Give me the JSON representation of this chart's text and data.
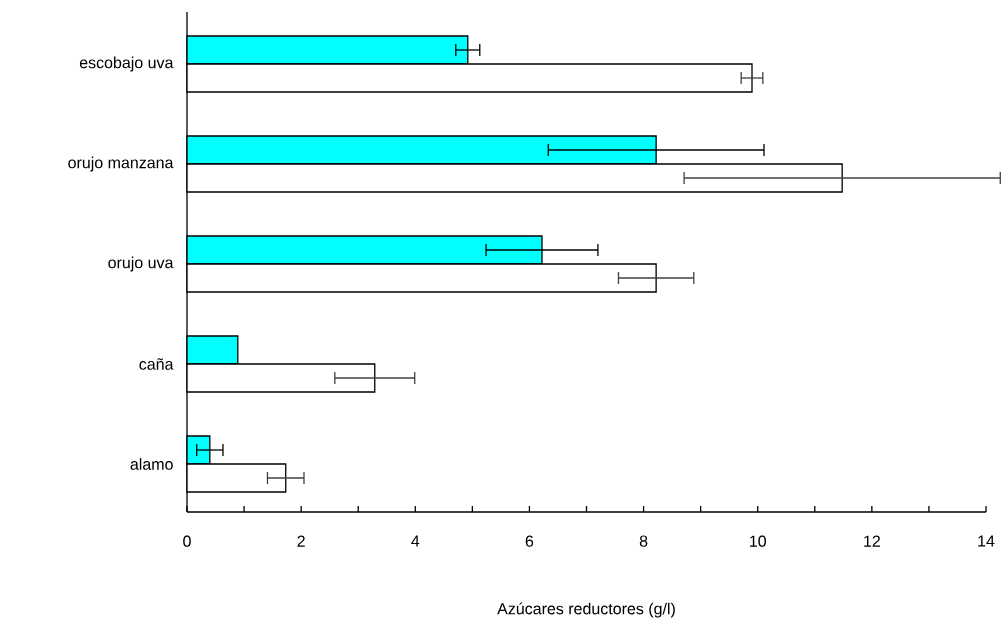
{
  "chart_data": {
    "type": "bar",
    "orientation": "horizontal",
    "xlabel": "Azúcares reductores (g/l)",
    "categories": [
      "escobajo uva",
      "orujo manzana",
      "orujo uva",
      "caña",
      "alamo"
    ],
    "series": [
      {
        "color": "#00ffff",
        "values": [
          4.92,
          8.22,
          6.22,
          0.89,
          0.4
        ],
        "errors": [
          0.21,
          1.89,
          0.98,
          null,
          0.23
        ]
      },
      {
        "color": "#ffffff",
        "values": [
          9.9,
          11.48,
          8.22,
          3.29,
          1.73
        ],
        "errors": [
          0.19,
          2.77,
          0.66,
          0.7,
          0.32
        ]
      }
    ],
    "xlim": [
      0,
      14
    ],
    "xticks": [
      0,
      {
        "value": 1,
        "label": null
      },
      2,
      {
        "value": 3,
        "label": null
      },
      4,
      {
        "value": 5,
        "label": null
      },
      6,
      {
        "value": 7,
        "label": null
      },
      8,
      {
        "value": 9,
        "label": null
      },
      10,
      {
        "value": 11,
        "label": null
      },
      12,
      {
        "value": 13,
        "label": null
      },
      14
    ],
    "grid": false
  }
}
